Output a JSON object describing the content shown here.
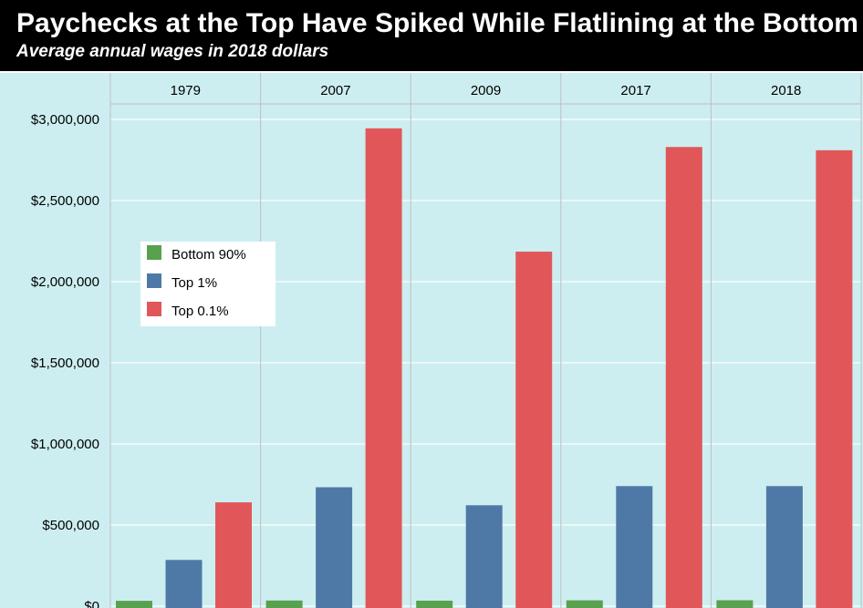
{
  "title": "Paychecks at the Top Have Spiked While Flatlining at the Bottom",
  "subtitle": "Average annual wages in 2018 dollars",
  "colors": {
    "background": "#cdeef0",
    "bottom90": "#59a14f",
    "top1": "#4e79a7",
    "top01": "#e15759",
    "grid": "#e9f8f9",
    "divider": "#bfbfbf"
  },
  "chart_data": {
    "type": "bar",
    "categories": [
      "1979",
      "2007",
      "2009",
      "2017",
      "2018"
    ],
    "series": [
      {
        "name": "Bottom 90%",
        "values": [
          33000,
          35000,
          34000,
          36000,
          36500
        ]
      },
      {
        "name": "Top 1%",
        "values": [
          285000,
          733000,
          622000,
          740000,
          740000
        ]
      },
      {
        "name": "Top 0.1%",
        "values": [
          640000,
          2945000,
          2185000,
          2830000,
          2810000
        ]
      }
    ],
    "ylim": [
      0,
      3000000
    ],
    "yticks": [
      0,
      500000,
      1000000,
      1500000,
      2000000,
      2500000,
      3000000
    ],
    "ytick_labels": [
      "$0",
      "$500,000",
      "$1,000,000",
      "$1,500,000",
      "$2,000,000",
      "$2,500,000",
      "$3,000,000"
    ],
    "legend": {
      "placement": "left",
      "entries": [
        "Bottom 90%",
        "Top 1%",
        "Top 0.1%"
      ]
    },
    "grid": true
  }
}
